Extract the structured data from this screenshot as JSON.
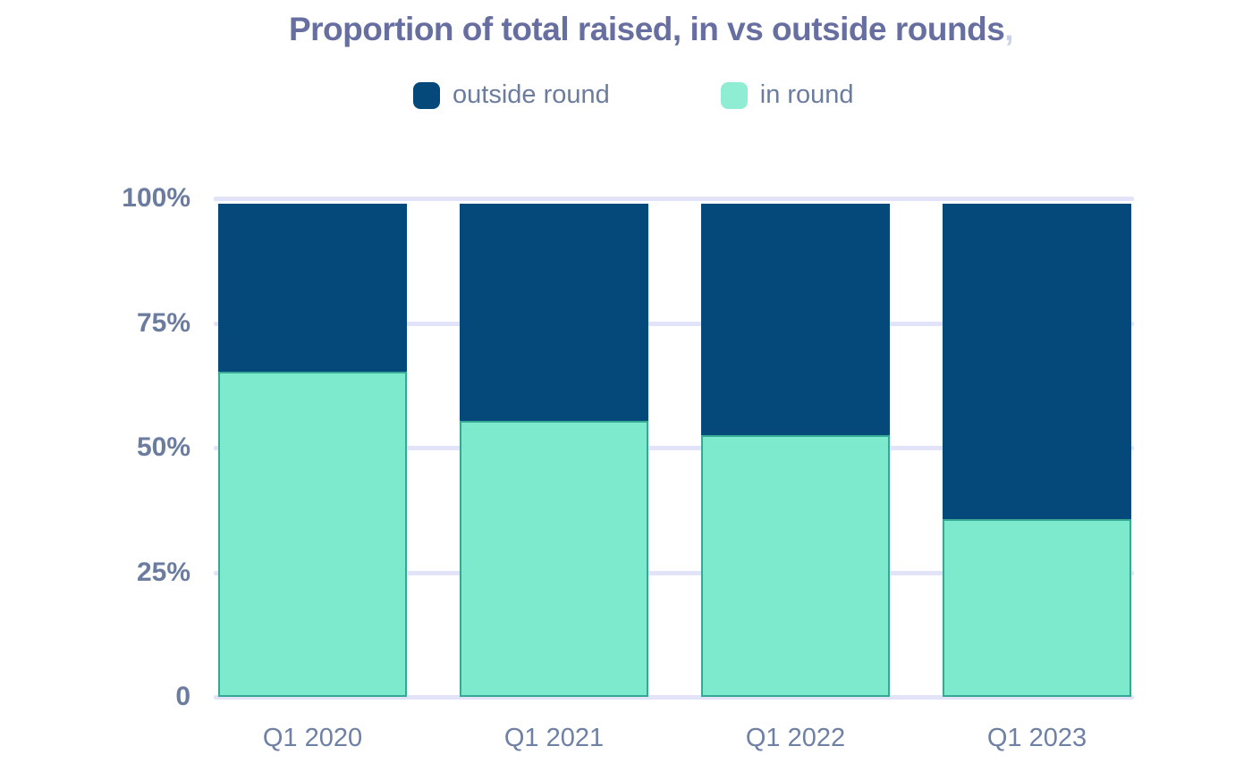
{
  "title": {
    "text": "Proportion of total raised, in vs outside rounds",
    "suffix": ","
  },
  "legend": {
    "items": [
      {
        "label": "outside round",
        "color": "#05497B"
      },
      {
        "label": "in round",
        "color": "#8FEDD3"
      }
    ]
  },
  "colors": {
    "background": "#FFFFFF",
    "bar_outside": "#05497B",
    "bar_in": "#7EEACD",
    "bar_in_border": "#38A894",
    "gridline": "#E2E3F8",
    "title_text": "#676FA0",
    "title_suffix": "#CDD1E6",
    "axis_text": "#6B7C9F",
    "x_label_text": "#6E80A4"
  },
  "y_axis": {
    "tick_labels": [
      "0",
      "25%",
      "50%",
      "75%",
      "100%"
    ]
  },
  "x_axis": {
    "labels": [
      "Q1 2020",
      "Q1 2021",
      "Q1 2022",
      "Q1 2023"
    ]
  },
  "chart_data": {
    "type": "bar",
    "stacked": true,
    "title": "Proportion of total raised, in vs outside rounds",
    "categories": [
      "Q1 2020",
      "Q1 2021",
      "Q1 2022",
      "Q1 2023"
    ],
    "series": [
      {
        "name": "outside round",
        "values": [
          34,
          44,
          47,
          64
        ],
        "color": "#05497B"
      },
      {
        "name": "in round",
        "values": [
          66,
          56,
          53,
          36
        ],
        "color": "#7EEACD",
        "border_color": "#38A894"
      }
    ],
    "unit": "%",
    "ylim": [
      0,
      100
    ],
    "y_ticks": [
      0,
      25,
      50,
      75,
      100
    ],
    "y_tick_labels": [
      "0",
      "25%",
      "50%",
      "75%",
      "100%"
    ],
    "grid": true,
    "legend_position": "top"
  }
}
